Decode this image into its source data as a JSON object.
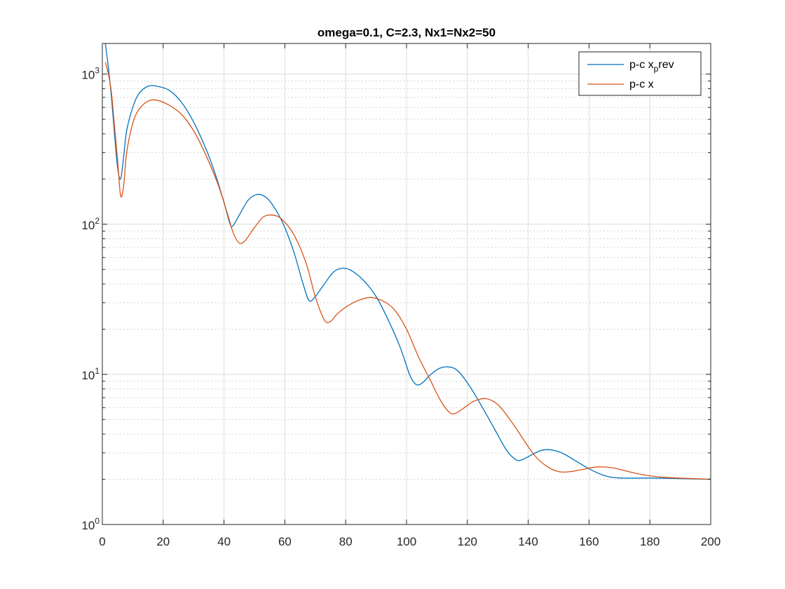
{
  "chart_data": {
    "type": "line",
    "title": "omega=0.1, C=2.3, Nx1=Nx2=50",
    "xlabel": "",
    "ylabel": "",
    "xlim": [
      0,
      200
    ],
    "ylim": [
      1,
      1600
    ],
    "yscale": "log",
    "grid": true,
    "minor_grid": true,
    "legend_position": "top-right",
    "x_ticks": [
      "0",
      "20",
      "40",
      "60",
      "80",
      "100",
      "120",
      "140",
      "160",
      "180",
      "200"
    ],
    "y_ticks": [
      {
        "base": "10",
        "exp": "0"
      },
      {
        "base": "10",
        "exp": "1"
      },
      {
        "base": "10",
        "exp": "2"
      },
      {
        "base": "10",
        "exp": "3"
      }
    ],
    "series": [
      {
        "legend": {
          "text": "p-c x",
          "subscript": "p",
          "suffix": "rev"
        },
        "color": "#0072BD",
        "points": [
          [
            1,
            1600
          ],
          [
            2,
            1100
          ],
          [
            3,
            700
          ],
          [
            4,
            400
          ],
          [
            5,
            240
          ],
          [
            6,
            200
          ],
          [
            7,
            280
          ],
          [
            8,
            420
          ],
          [
            10,
            600
          ],
          [
            12,
            740
          ],
          [
            15,
            830
          ],
          [
            18,
            830
          ],
          [
            22,
            780
          ],
          [
            26,
            650
          ],
          [
            30,
            480
          ],
          [
            34,
            320
          ],
          [
            37,
            220
          ],
          [
            40,
            140
          ],
          [
            42,
            100
          ],
          [
            43,
            98
          ],
          [
            45,
            115
          ],
          [
            48,
            145
          ],
          [
            51,
            158
          ],
          [
            54,
            150
          ],
          [
            57,
            125
          ],
          [
            60,
            95
          ],
          [
            63,
            65
          ],
          [
            66,
            40
          ],
          [
            68,
            31
          ],
          [
            70,
            33
          ],
          [
            73,
            40
          ],
          [
            76,
            48
          ],
          [
            79,
            51
          ],
          [
            82,
            49
          ],
          [
            86,
            42
          ],
          [
            90,
            33
          ],
          [
            94,
            23
          ],
          [
            98,
            15
          ],
          [
            101,
            10
          ],
          [
            103,
            8.6
          ],
          [
            105,
            8.7
          ],
          [
            108,
            10
          ],
          [
            111,
            11
          ],
          [
            114,
            11.2
          ],
          [
            117,
            10.5
          ],
          [
            121,
            8.2
          ],
          [
            125,
            6
          ],
          [
            129,
            4.3
          ],
          [
            133,
            3.1
          ],
          [
            136,
            2.7
          ],
          [
            138,
            2.7
          ],
          [
            141,
            2.9
          ],
          [
            144,
            3.1
          ],
          [
            147,
            3.15
          ],
          [
            151,
            3.0
          ],
          [
            155,
            2.7
          ],
          [
            160,
            2.35
          ],
          [
            165,
            2.12
          ],
          [
            170,
            2.04
          ],
          [
            180,
            2.04
          ],
          [
            190,
            2.02
          ],
          [
            200,
            2.0
          ]
        ]
      },
      {
        "legend": {
          "text": "p-c x",
          "subscript": "",
          "suffix": ""
        },
        "color": "#D95319",
        "points": [
          [
            1,
            1200
          ],
          [
            2,
            1000
          ],
          [
            3,
            750
          ],
          [
            4,
            450
          ],
          [
            5,
            270
          ],
          [
            6,
            155
          ],
          [
            7,
            180
          ],
          [
            8,
            300
          ],
          [
            10,
            470
          ],
          [
            12,
            580
          ],
          [
            15,
            660
          ],
          [
            18,
            670
          ],
          [
            22,
            620
          ],
          [
            26,
            540
          ],
          [
            30,
            420
          ],
          [
            34,
            290
          ],
          [
            38,
            185
          ],
          [
            41,
            120
          ],
          [
            43,
            88
          ],
          [
            45,
            75
          ],
          [
            47,
            78
          ],
          [
            50,
            95
          ],
          [
            53,
            112
          ],
          [
            56,
            115
          ],
          [
            59,
            108
          ],
          [
            63,
            85
          ],
          [
            67,
            55
          ],
          [
            70,
            33
          ],
          [
            73,
            23
          ],
          [
            75,
            22.5
          ],
          [
            77,
            25
          ],
          [
            80,
            28
          ],
          [
            84,
            31
          ],
          [
            88,
            32.5
          ],
          [
            92,
            31
          ],
          [
            96,
            27
          ],
          [
            100,
            20
          ],
          [
            104,
            13
          ],
          [
            108,
            9
          ],
          [
            111,
            6.8
          ],
          [
            114,
            5.6
          ],
          [
            116,
            5.5
          ],
          [
            119,
            6
          ],
          [
            122,
            6.6
          ],
          [
            126,
            6.9
          ],
          [
            130,
            6.3
          ],
          [
            134,
            5
          ],
          [
            138,
            3.8
          ],
          [
            142,
            2.9
          ],
          [
            146,
            2.45
          ],
          [
            150,
            2.25
          ],
          [
            154,
            2.25
          ],
          [
            158,
            2.33
          ],
          [
            163,
            2.42
          ],
          [
            168,
            2.38
          ],
          [
            173,
            2.25
          ],
          [
            178,
            2.14
          ],
          [
            185,
            2.06
          ],
          [
            200,
            2.0
          ]
        ]
      }
    ]
  }
}
